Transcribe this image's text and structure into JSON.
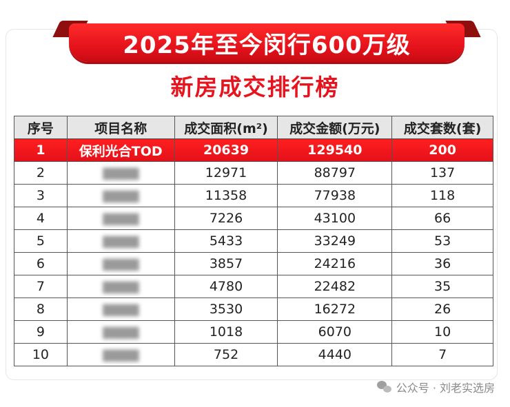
{
  "header": {
    "banner_title": "2025年至今闵行600万级",
    "subtitle": "新房成交排行榜"
  },
  "colors": {
    "accent_red": "#e5141e",
    "header_gray": "#e6e6e6"
  },
  "table": {
    "columns": [
      "序号",
      "项目名称",
      "成交面积(m²)",
      "成交金额(万元)",
      "成交套数(套)"
    ],
    "rows": [
      {
        "rank": "1",
        "name": "保利光合TOD",
        "area": "20639",
        "amount": "129540",
        "units": "200",
        "name_blurred": false
      },
      {
        "rank": "2",
        "name": "",
        "area": "12971",
        "amount": "88797",
        "units": "137",
        "name_blurred": true
      },
      {
        "rank": "3",
        "name": "",
        "area": "11358",
        "amount": "77938",
        "units": "118",
        "name_blurred": true
      },
      {
        "rank": "4",
        "name": "",
        "area": "7226",
        "amount": "43100",
        "units": "66",
        "name_blurred": true
      },
      {
        "rank": "5",
        "name": "",
        "area": "5433",
        "amount": "33249",
        "units": "53",
        "name_blurred": true
      },
      {
        "rank": "6",
        "name": "",
        "area": "3857",
        "amount": "24216",
        "units": "36",
        "name_blurred": true
      },
      {
        "rank": "7",
        "name": "",
        "area": "4780",
        "amount": "22482",
        "units": "35",
        "name_blurred": true
      },
      {
        "rank": "8",
        "name": "",
        "area": "3530",
        "amount": "16272",
        "units": "26",
        "name_blurred": true
      },
      {
        "rank": "9",
        "name": "",
        "area": "1018",
        "amount": "6070",
        "units": "10",
        "name_blurred": true
      },
      {
        "rank": "10",
        "name": "",
        "area": "752",
        "amount": "4440",
        "units": "7",
        "name_blurred": true
      }
    ]
  },
  "watermark": {
    "icon": "wechat-icon",
    "text": "公众号 · 刘老实选房"
  }
}
